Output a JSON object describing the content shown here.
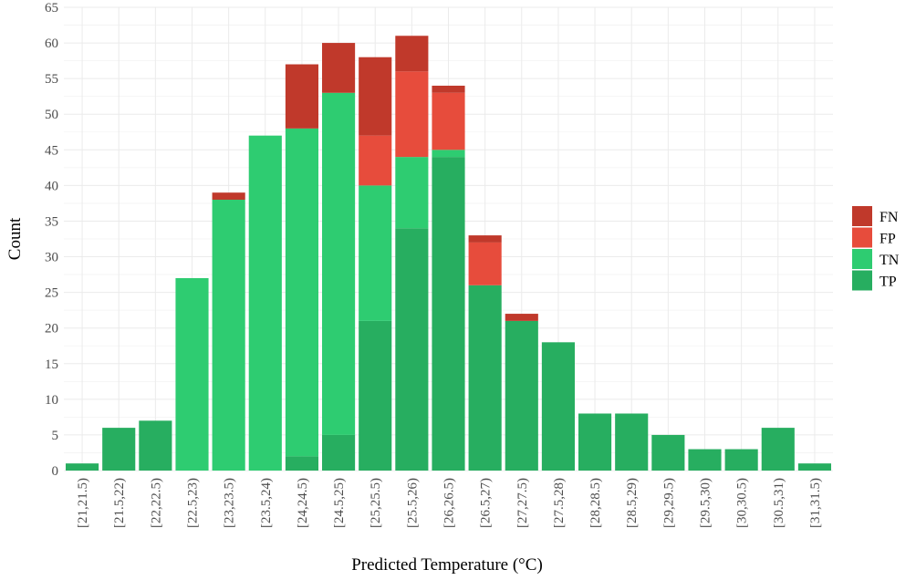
{
  "chart_data": {
    "type": "bar",
    "stacked": true,
    "xlabel": "Predicted Temperature (°C)",
    "ylabel": "Count",
    "ylim": [
      0,
      65
    ],
    "yticks": [
      0,
      5,
      10,
      15,
      20,
      25,
      30,
      35,
      40,
      45,
      50,
      55,
      60,
      65
    ],
    "grid": true,
    "legend_position": "right",
    "categories": [
      "[21,21.5)",
      "[21.5,22)",
      "[22,22.5)",
      "[22.5,23)",
      "[23,23.5)",
      "[23.5,24)",
      "[24,24.5)",
      "[24.5,25)",
      "[25,25.5)",
      "[25.5,26)",
      "[26,26.5)",
      "[26.5,27)",
      "[27,27.5)",
      "[27.5,28)",
      "[28,28.5)",
      "[28.5,29)",
      "[29,29.5)",
      "[29.5,30)",
      "[30,30.5)",
      "[30.5,31)",
      "[31,31.5)"
    ],
    "series": [
      {
        "name": "TP",
        "color": "#27ae60",
        "values": [
          1,
          6,
          7,
          0,
          0,
          0,
          2,
          5,
          21,
          34,
          44,
          26,
          21,
          18,
          8,
          8,
          5,
          3,
          3,
          6,
          1
        ]
      },
      {
        "name": "TN",
        "color": "#2ecc71",
        "values": [
          0,
          0,
          0,
          27,
          38,
          47,
          46,
          48,
          19,
          10,
          1,
          0,
          0,
          0,
          0,
          0,
          0,
          0,
          0,
          0,
          0
        ]
      },
      {
        "name": "FP",
        "color": "#e74c3c",
        "values": [
          0,
          0,
          0,
          0,
          0,
          0,
          0,
          0,
          7,
          12,
          8,
          6,
          0,
          0,
          0,
          0,
          0,
          0,
          0,
          0,
          0
        ]
      },
      {
        "name": "FN",
        "color": "#c0392b",
        "values": [
          0,
          0,
          0,
          0,
          1,
          0,
          9,
          7,
          11,
          5,
          1,
          1,
          1,
          0,
          0,
          0,
          0,
          0,
          0,
          0,
          0
        ]
      }
    ],
    "legend_order": [
      "FN",
      "FP",
      "TN",
      "TP"
    ]
  }
}
